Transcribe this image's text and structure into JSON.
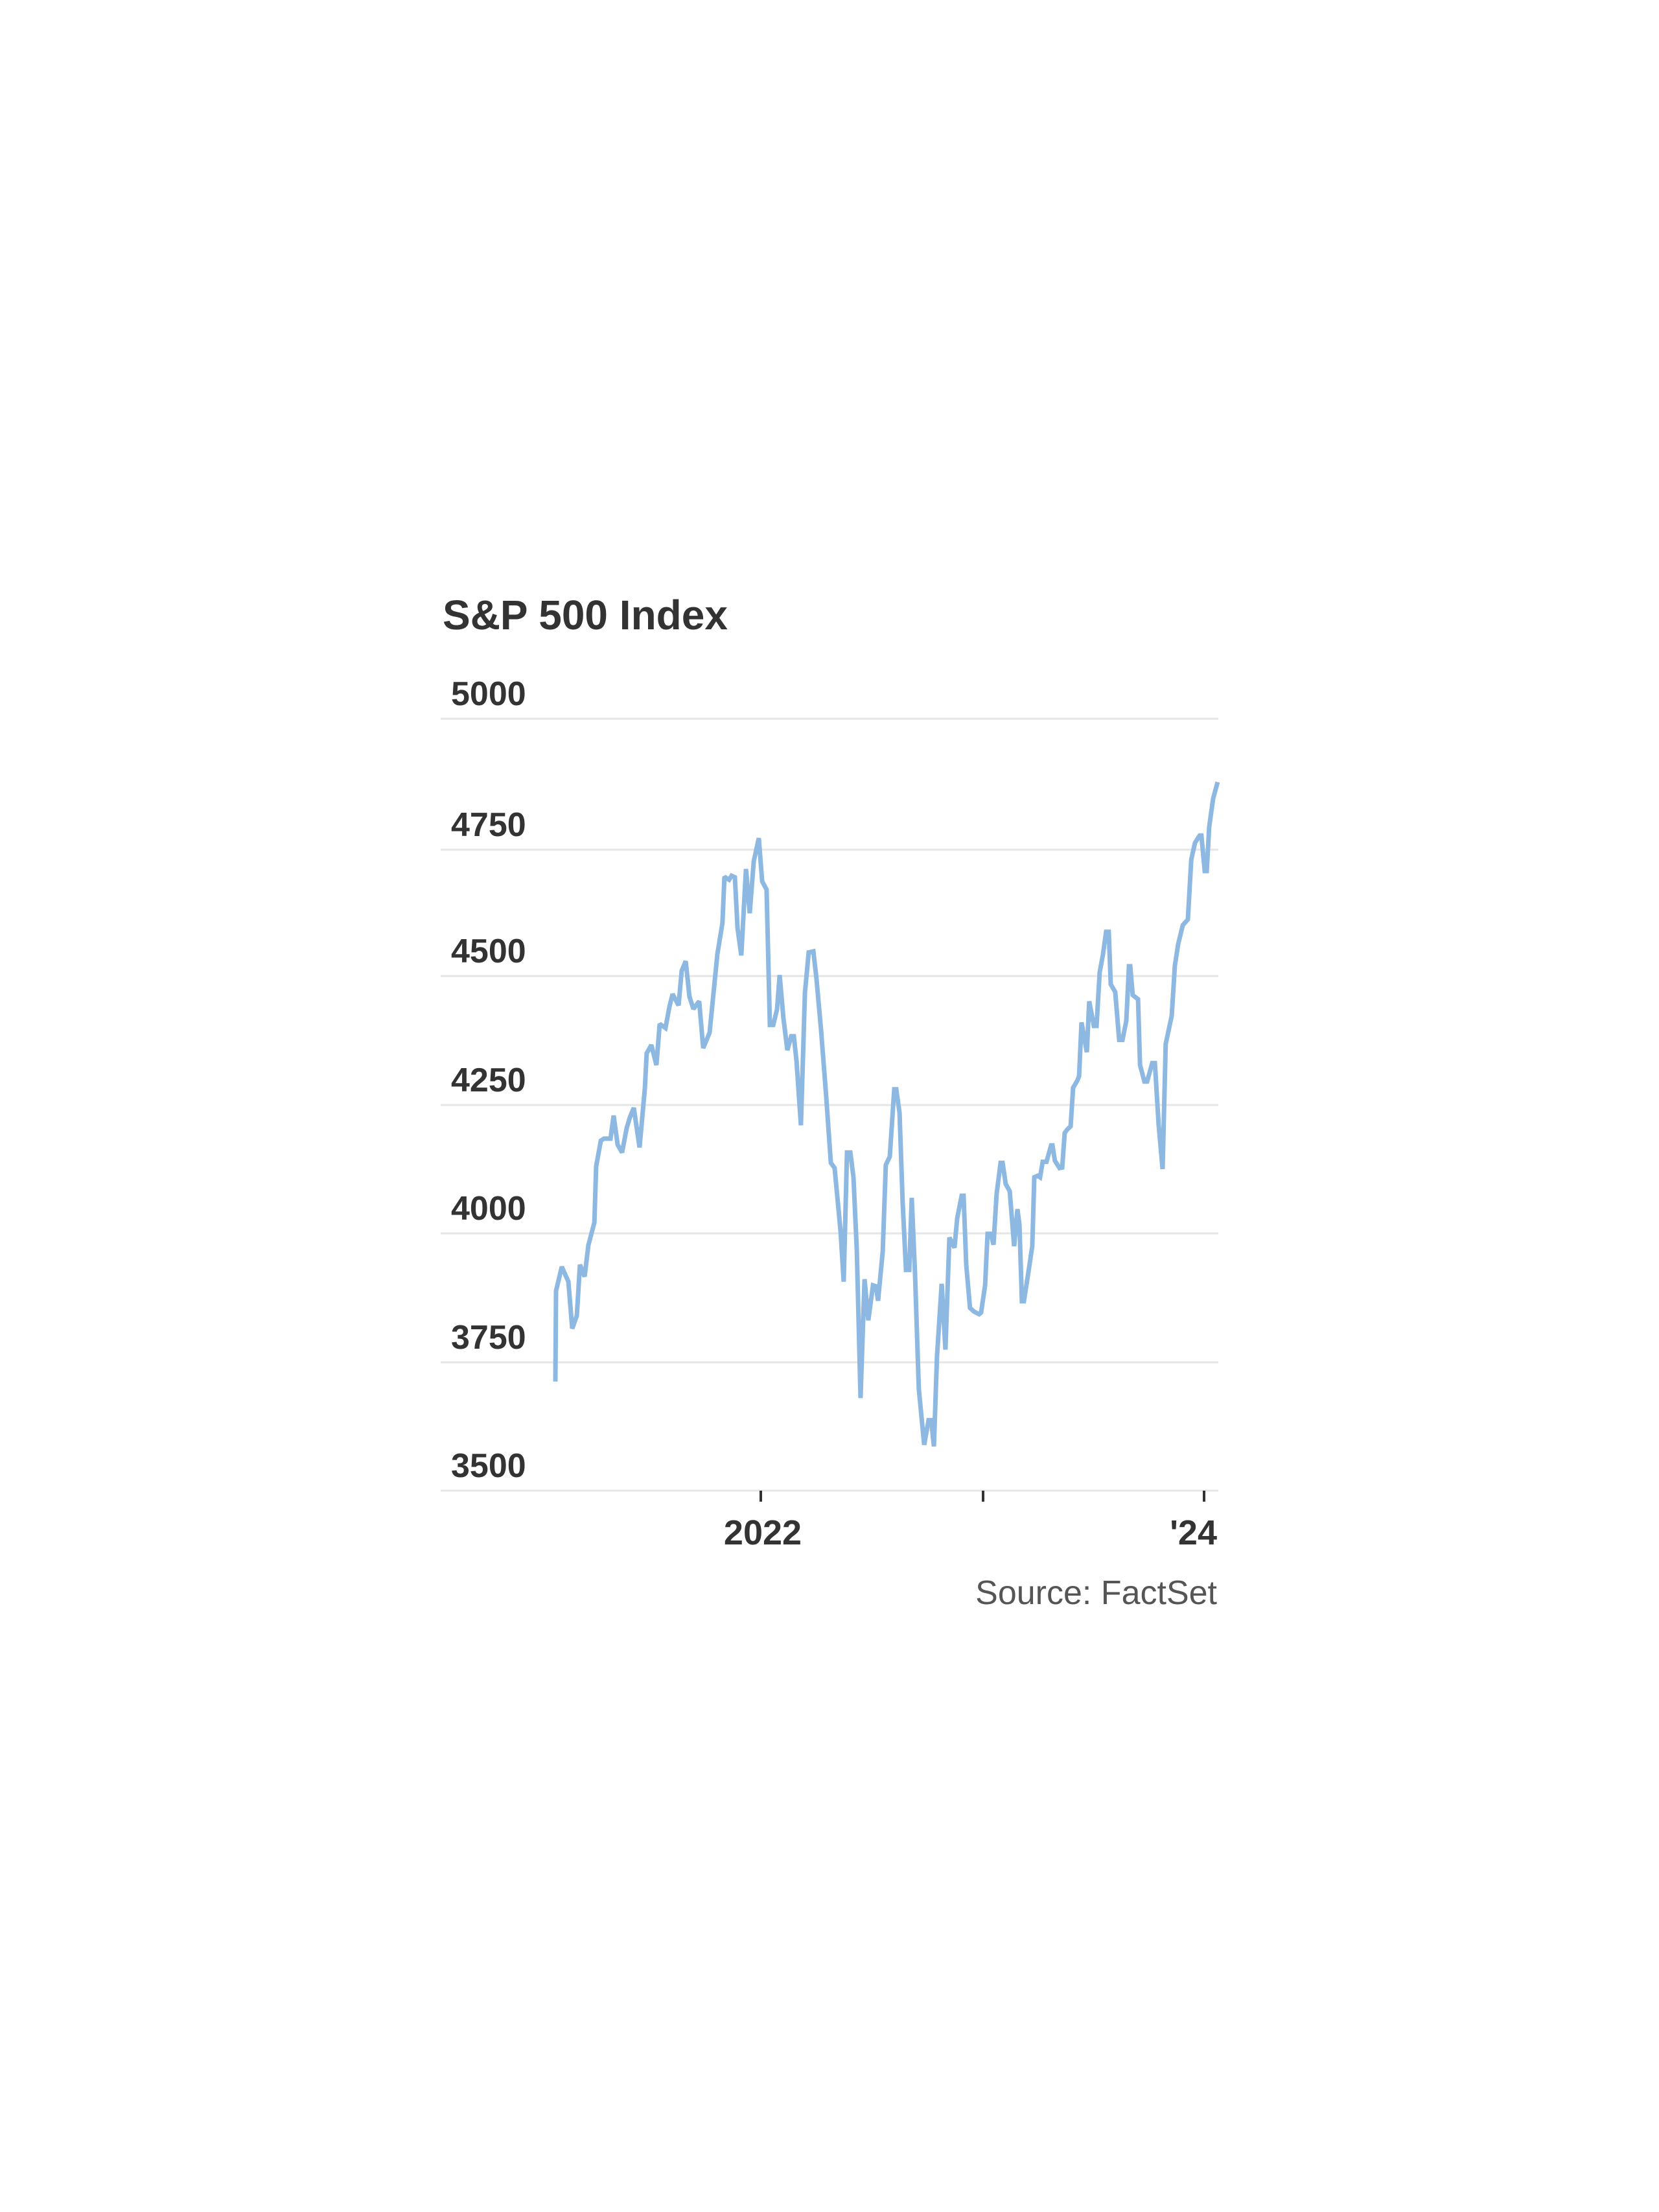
{
  "title": "S&P 500 Index",
  "source": "Source: FactSet",
  "colors": {
    "line": "#8cb8e2",
    "gridline": "#e6e6e6",
    "text": "#333333",
    "source_text": "#555555",
    "background": "#ffffff"
  },
  "y_axis": {
    "labels": [
      "5000",
      "4750",
      "4500",
      "4250",
      "4000",
      "3750",
      "3500"
    ]
  },
  "x_axis": {
    "labels": [
      "2022",
      "",
      "'24"
    ]
  },
  "chart_data": {
    "type": "line",
    "title": "S&P 500 Index",
    "xlabel": "",
    "ylabel": "",
    "source": "Source: FactSet",
    "ylim": [
      3500,
      5000
    ],
    "yticks": [
      3500,
      3750,
      4000,
      4250,
      4500,
      4750,
      5000
    ],
    "xticks": [
      {
        "x": 2022,
        "label": "2022"
      },
      {
        "x": 2023,
        "label": ""
      },
      {
        "x": 2024,
        "label": "'24"
      }
    ],
    "xlim": [
      2021.07,
      2024.06
    ],
    "grid": "horizontal",
    "legend": "none",
    "series": [
      {
        "name": "S&P 500 Index",
        "x": [
          2021.073,
          2021.076,
          2021.102,
          2021.132,
          2021.149,
          2021.17,
          2021.184,
          2021.205,
          2021.222,
          2021.249,
          2021.257,
          2021.278,
          2021.292,
          2021.322,
          2021.336,
          2021.354,
          2021.374,
          2021.395,
          2021.409,
          2021.427,
          2021.453,
          2021.477,
          2021.485,
          2021.506,
          2021.529,
          2021.544,
          2021.57,
          2021.588,
          2021.602,
          2021.629,
          2021.643,
          2021.661,
          2021.678,
          2021.696,
          2021.722,
          2021.74,
          2021.769,
          2021.804,
          2021.827,
          2021.836,
          2021.857,
          2021.868,
          2021.883,
          2021.895,
          2021.912,
          2021.933,
          2021.95,
          2021.968,
          2021.991,
          2022.006,
          2022.026,
          2022.041,
          2022.056,
          2022.073,
          2022.085,
          2022.102,
          2022.12,
          2022.137,
          2022.149,
          2022.161,
          2022.181,
          2022.199,
          2022.216,
          2022.237,
          2022.251,
          2022.272,
          2022.295,
          2022.316,
          2022.333,
          2022.36,
          2022.374,
          2022.389,
          2022.404,
          2022.418,
          2022.433,
          2022.45,
          2022.468,
          2022.485,
          2022.506,
          2022.52,
          2022.529,
          2022.55,
          2022.564,
          2022.582,
          2022.602,
          2022.611,
          2022.626,
          2022.64,
          2022.655,
          2022.67,
          2022.681,
          2022.696,
          2022.713,
          2022.737,
          2022.757,
          2022.769,
          2022.781,
          2022.795,
          2022.816,
          2022.833,
          2022.851,
          2022.874,
          2022.886,
          2022.906,
          2022.915,
          2022.927,
          2022.944,
          2022.962,
          2022.985,
          2022.994,
          2023.012,
          2023.023,
          2023.038,
          2023.05,
          2023.064,
          2023.082,
          2023.091,
          2023.105,
          2023.123,
          2023.143,
          2023.158,
          2023.167,
          2023.178,
          2023.187,
          2023.208,
          2023.225,
          2023.234,
          2023.249,
          2023.26,
          2023.272,
          2023.289,
          2023.31,
          2023.316,
          2023.327,
          2023.348,
          2023.36,
          2023.371,
          2023.383,
          2023.398,
          2023.409,
          2023.427,
          2023.436,
          2023.447,
          2023.471,
          2023.482,
          2023.503,
          2023.515,
          2023.529,
          2023.544,
          2023.558,
          2023.57,
          2023.579,
          2023.599,
          2023.617,
          2023.632,
          2023.649,
          2023.661,
          2023.667,
          2023.678,
          2023.702,
          2023.711,
          2023.731,
          2023.743,
          2023.766,
          2023.778,
          2023.795,
          2023.813,
          2023.827,
          2023.854,
          2023.868,
          2023.883,
          2023.904,
          2023.927,
          2023.942,
          2023.959,
          2023.98,
          2023.988,
          2024.003,
          2024.012,
          2024.023,
          2024.041,
          2024.061
        ],
        "values": [
          3712,
          3888,
          3935,
          3906,
          3815,
          3840,
          3939,
          3916,
          3977,
          4021,
          4130,
          4180,
          4184,
          4184,
          4229,
          4172,
          4157,
          4205,
          4225,
          4244,
          4167,
          4282,
          4350,
          4366,
          4327,
          4407,
          4399,
          4441,
          4465,
          4443,
          4510,
          4529,
          4460,
          4436,
          4451,
          4360,
          4390,
          4543,
          4603,
          4693,
          4687,
          4695,
          4692,
          4593,
          4540,
          4708,
          4622,
          4723,
          4768,
          4684,
          4668,
          4405,
          4405,
          4435,
          4502,
          4418,
          4356,
          4383,
          4383,
          4335,
          4210,
          4468,
          4546,
          4548,
          4496,
          4395,
          4266,
          4137,
          4127,
          4004,
          3906,
          4157,
          4157,
          4109,
          3968,
          3680,
          3911,
          3831,
          3899,
          3897,
          3869,
          3964,
          4133,
          4149,
          4280,
          4280,
          4234,
          4060,
          3929,
          3929,
          4069,
          3921,
          3698,
          3589,
          3637,
          3637,
          3586,
          3762,
          3902,
          3774,
          3992,
          3972,
          4029,
          4073,
          4073,
          3939,
          3855,
          3848,
          3843,
          3846,
          3899,
          3999,
          3999,
          3978,
          4077,
          4137,
          4137,
          4096,
          4082,
          3975,
          4047,
          4017,
          3868,
          3868,
          3926,
          3975,
          4109,
          4112,
          4109,
          4139,
          4139,
          4171,
          4171,
          4141,
          4127,
          4128,
          4195,
          4202,
          4208,
          4283,
          4296,
          4305,
          4410,
          4352,
          4451,
          4403,
          4403,
          4507,
          4542,
          4586,
          4586,
          4484,
          4469,
          4376,
          4376,
          4413,
          4519,
          4519,
          4463,
          4455,
          4327,
          4295,
          4295,
          4331,
          4331,
          4211,
          4125,
          4368,
          4423,
          4520,
          4562,
          4599,
          4610,
          4726,
          4759,
          4773,
          4773,
          4704,
          4704,
          4790,
          4845,
          4877
        ]
      }
    ]
  }
}
